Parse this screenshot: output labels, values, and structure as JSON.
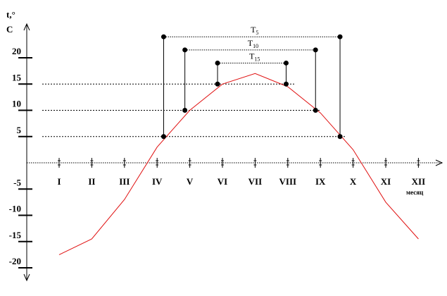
{
  "chart_data": {
    "type": "line",
    "ylabel_line1": "t,°",
    "ylabel_line2": "C",
    "xlabel": "месяц",
    "ylim": [
      -20,
      25
    ],
    "y_ticks": [
      -20,
      -15,
      -10,
      -5,
      5,
      10,
      15,
      20
    ],
    "categories": [
      "I",
      "II",
      "III",
      "IV",
      "V",
      "VI",
      "VII",
      "VIII",
      "IX",
      "X",
      "XI",
      "XII"
    ],
    "series": [
      {
        "color": "#e01010",
        "values": [
          -17.5,
          -14.5,
          -7,
          3,
          10,
          15,
          17,
          14.5,
          9.5,
          2.5,
          -7.5,
          -14.5
        ]
      }
    ],
    "levels": [
      5,
      10,
      15
    ],
    "periods": [
      {
        "label": "T",
        "sub": "5",
        "level": 5,
        "start_month": 4.2,
        "end_month": 9.6,
        "top": 24
      },
      {
        "label": "T",
        "sub": "10",
        "level": 10,
        "start_month": 4.85,
        "end_month": 8.85,
        "top": 21.5
      },
      {
        "label": "T",
        "sub": "15",
        "level": 15,
        "start_month": 5.85,
        "end_month": 7.95,
        "top": 19
      }
    ]
  }
}
